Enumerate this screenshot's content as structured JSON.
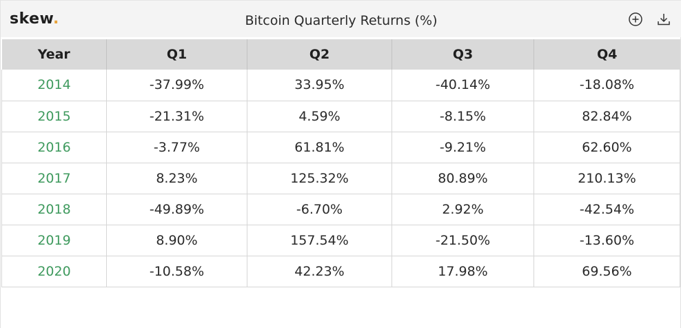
{
  "app": {
    "logo_text": "skew",
    "logo_dot": "."
  },
  "header": {
    "title": "Bitcoin Quarterly Returns (%)"
  },
  "icons": {
    "add": "plus-circle-icon",
    "download": "download-icon"
  },
  "colors": {
    "year_text": "#3f9a5e",
    "logo_dot": "#e8a33a",
    "header_bg": "#d9d9d9"
  },
  "table": {
    "columns": [
      "Year",
      "Q1",
      "Q2",
      "Q3",
      "Q4"
    ],
    "rows": [
      [
        "2014",
        "-37.99%",
        "33.95%",
        "-40.14%",
        "-18.08%"
      ],
      [
        "2015",
        "-21.31%",
        "4.59%",
        "-8.15%",
        "82.84%"
      ],
      [
        "2016",
        "-3.77%",
        "61.81%",
        "-9.21%",
        "62.60%"
      ],
      [
        "2017",
        "8.23%",
        "125.32%",
        "80.89%",
        "210.13%"
      ],
      [
        "2018",
        "-49.89%",
        "-6.70%",
        "2.92%",
        "-42.54%"
      ],
      [
        "2019",
        "8.90%",
        "157.54%",
        "-21.50%",
        "-13.60%"
      ],
      [
        "2020",
        "-10.58%",
        "42.23%",
        "17.98%",
        "69.56%"
      ]
    ]
  }
}
